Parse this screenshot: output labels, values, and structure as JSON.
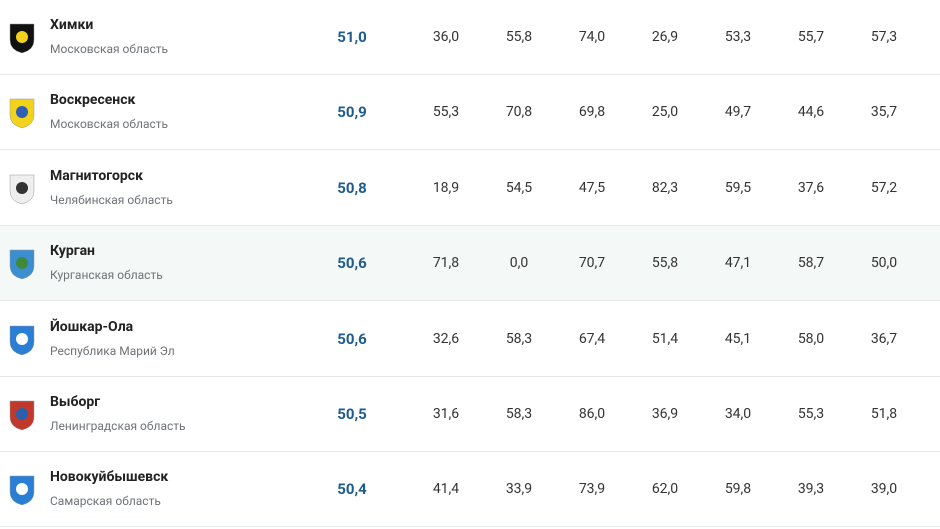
{
  "table": {
    "rows": [
      {
        "city": "Химки",
        "region": "Московская область",
        "score": "51,0",
        "values": [
          "36,0",
          "55,8",
          "74,0",
          "26,9",
          "53,3",
          "55,7",
          "57,3"
        ]
      },
      {
        "city": "Воскресенск",
        "region": "Московская область",
        "score": "50,9",
        "values": [
          "55,3",
          "70,8",
          "69,8",
          "25,0",
          "49,7",
          "44,6",
          "35,7"
        ]
      },
      {
        "city": "Магнитогорск",
        "region": "Челябинская область",
        "score": "50,8",
        "values": [
          "18,9",
          "54,5",
          "47,5",
          "82,3",
          "59,5",
          "37,6",
          "57,2"
        ]
      },
      {
        "city": "Курган",
        "region": "Курганская область",
        "score": "50,6",
        "values": [
          "71,8",
          "0,0",
          "70,7",
          "55,8",
          "47,1",
          "58,7",
          "50,0"
        ]
      },
      {
        "city": "Йошкар-Ола",
        "region": "Республика Марий Эл",
        "score": "50,6",
        "values": [
          "32,6",
          "58,3",
          "67,4",
          "51,4",
          "45,1",
          "58,0",
          "36,7"
        ]
      },
      {
        "city": "Выборг",
        "region": "Ленинградская область",
        "score": "50,5",
        "values": [
          "31,6",
          "58,3",
          "86,0",
          "36,9",
          "34,0",
          "55,3",
          "51,8"
        ]
      },
      {
        "city": "Новокуйбышевск",
        "region": "Самарская область",
        "score": "50,4",
        "values": [
          "41,4",
          "33,9",
          "73,9",
          "62,0",
          "59,8",
          "39,3",
          "39,0"
        ]
      }
    ]
  }
}
